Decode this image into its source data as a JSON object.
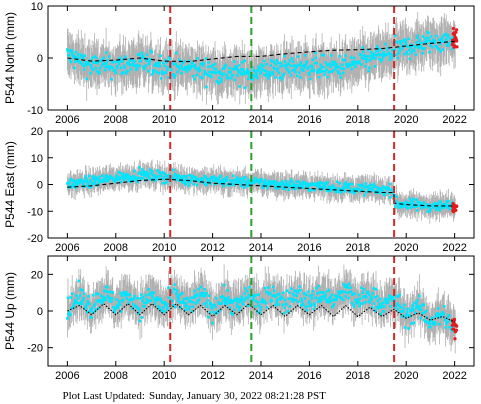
{
  "footer": {
    "label": "Plot Last Updated:",
    "timestamp": "Sunday, January 30, 2022 08:21:28 PST"
  },
  "colors": {
    "data_points": "#00e5ff",
    "error_bars": "#b0b0b0",
    "model_line": "#000000",
    "recent_points": "#e41a1c",
    "equipment_change": "#d62728",
    "offset_event": "#2ca02c"
  },
  "chart_data": [
    {
      "type": "scatter",
      "ylabel": "P544 North (mm)",
      "xlim": [
        2005.2,
        2022.8
      ],
      "ylim": [
        -10,
        10
      ],
      "x_ticks": [
        2006,
        2008,
        2010,
        2012,
        2014,
        2016,
        2018,
        2020,
        2022
      ],
      "y_ticks": [
        -10,
        0,
        10
      ],
      "vlines": [
        {
          "x": 2010.25,
          "color": "red",
          "style": "dashed"
        },
        {
          "x": 2013.6,
          "color": "green",
          "style": "dashed"
        },
        {
          "x": 2019.5,
          "color": "red",
          "style": "dashed"
        }
      ],
      "model": {
        "x": [
          2006.0,
          2007.0,
          2008.0,
          2009.0,
          2010.0,
          2011.0,
          2012.0,
          2013.0,
          2014.0,
          2015.0,
          2016.0,
          2017.0,
          2018.0,
          2019.0,
          2020.0,
          2021.0,
          2022.0
        ],
        "y": [
          0.0,
          -0.6,
          -0.4,
          0.0,
          -0.6,
          -0.7,
          -0.2,
          0.3,
          0.3,
          0.8,
          1.2,
          1.5,
          1.6,
          1.8,
          2.3,
          2.8,
          3.2
        ]
      },
      "data_trend": {
        "x": [
          2006.0,
          2007.0,
          2008.0,
          2009.0,
          2010.0,
          2011.0,
          2012.0,
          2013.0,
          2014.0,
          2015.0,
          2016.0,
          2017.0,
          2018.0,
          2019.0,
          2020.0,
          2021.0,
          2022.0
        ],
        "y": [
          0.5,
          -1.5,
          -1.5,
          -1.0,
          -1.5,
          -2.0,
          -2.5,
          -3.0,
          -2.5,
          -2.0,
          -1.5,
          -2.0,
          -1.0,
          0.5,
          2.0,
          3.0,
          3.5
        ]
      },
      "data_spread": 2.2,
      "error_spread": 4.0
    },
    {
      "type": "scatter",
      "ylabel": "P544 East (mm)",
      "xlim": [
        2005.2,
        2022.8
      ],
      "ylim": [
        -20,
        20
      ],
      "x_ticks": [
        2006,
        2008,
        2010,
        2012,
        2014,
        2016,
        2018,
        2020,
        2022
      ],
      "y_ticks": [
        -20,
        -10,
        0,
        10,
        20
      ],
      "vlines": [
        {
          "x": 2010.25,
          "color": "red",
          "style": "dashed"
        },
        {
          "x": 2013.6,
          "color": "green",
          "style": "dashed"
        },
        {
          "x": 2019.5,
          "color": "red",
          "style": "dashed"
        }
      ],
      "model": {
        "x": [
          2006.0,
          2007.0,
          2008.0,
          2009.0,
          2010.0,
          2011.0,
          2012.0,
          2013.0,
          2014.0,
          2015.0,
          2016.0,
          2017.0,
          2018.0,
          2019.0,
          2019.49,
          2019.51,
          2020.0,
          2021.0,
          2022.0
        ],
        "y": [
          -1.0,
          -0.5,
          0.5,
          1.5,
          2.0,
          1.5,
          0.5,
          0.0,
          -0.5,
          -1.0,
          -1.5,
          -2.0,
          -2.5,
          -3.0,
          -3.0,
          -7.0,
          -7.5,
          -8.0,
          -8.0
        ]
      },
      "data_trend": {
        "x": [
          2006.0,
          2007.0,
          2008.0,
          2009.0,
          2010.0,
          2011.0,
          2012.0,
          2013.0,
          2014.0,
          2015.0,
          2016.0,
          2017.0,
          2018.0,
          2019.0,
          2019.49,
          2019.51,
          2020.0,
          2021.0,
          2022.0
        ],
        "y": [
          0.0,
          1.0,
          2.5,
          3.5,
          3.0,
          2.0,
          1.5,
          1.0,
          0.5,
          0.0,
          -0.5,
          -1.0,
          -1.5,
          -2.0,
          -2.0,
          -7.0,
          -7.5,
          -8.0,
          -8.0
        ]
      },
      "data_spread": 2.0,
      "error_spread": 4.0
    },
    {
      "type": "scatter",
      "ylabel": "P544 Up (mm)",
      "xlim": [
        2005.2,
        2022.8
      ],
      "ylim": [
        -30,
        30
      ],
      "x_ticks": [
        2006,
        2008,
        2010,
        2012,
        2014,
        2016,
        2018,
        2020,
        2022
      ],
      "y_ticks": [
        -20,
        0,
        20
      ],
      "vlines": [
        {
          "x": 2010.25,
          "color": "red",
          "style": "dashed"
        },
        {
          "x": 2013.6,
          "color": "green",
          "style": "dashed"
        },
        {
          "x": 2019.5,
          "color": "red",
          "style": "dashed"
        }
      ],
      "model": {
        "x": [
          2006.0,
          2006.5,
          2007.0,
          2007.5,
          2008.0,
          2008.5,
          2009.0,
          2009.5,
          2010.0,
          2010.5,
          2011.0,
          2011.5,
          2012.0,
          2012.5,
          2013.0,
          2013.5,
          2014.0,
          2014.5,
          2015.0,
          2015.5,
          2016.0,
          2016.5,
          2017.0,
          2017.5,
          2018.0,
          2018.5,
          2019.0,
          2019.5,
          2020.0,
          2020.5,
          2021.0,
          2021.5,
          2022.0
        ],
        "y": [
          0,
          3,
          -2,
          4,
          -2,
          4,
          -2,
          4,
          -2,
          4,
          -2,
          3,
          -3,
          3,
          -2,
          4,
          -2,
          3,
          -3,
          3,
          -2,
          3,
          -3,
          3,
          -3,
          2,
          -3,
          1,
          -4,
          -1,
          -5,
          -3,
          -6
        ]
      },
      "data_trend": {
        "x": [
          2006.0,
          2006.5,
          2007.0,
          2007.5,
          2008.0,
          2008.5,
          2009.0,
          2009.5,
          2010.0,
          2010.5,
          2011.0,
          2011.5,
          2012.0,
          2012.5,
          2013.0,
          2013.5,
          2014.0,
          2014.5,
          2015.0,
          2015.5,
          2016.0,
          2016.5,
          2017.0,
          2017.5,
          2018.0,
          2018.5,
          2019.0,
          2019.5,
          2020.0,
          2020.5,
          2021.0,
          2021.5,
          2022.0
        ],
        "y": [
          0,
          8,
          2,
          10,
          3,
          9,
          2,
          9,
          1,
          8,
          2,
          9,
          1,
          8,
          2,
          9,
          3,
          10,
          4,
          10,
          4,
          10,
          5,
          11,
          5,
          9,
          3,
          6,
          -3,
          2,
          -6,
          -2,
          -9
        ]
      },
      "data_spread": 6.0,
      "error_spread": 10.0
    }
  ]
}
